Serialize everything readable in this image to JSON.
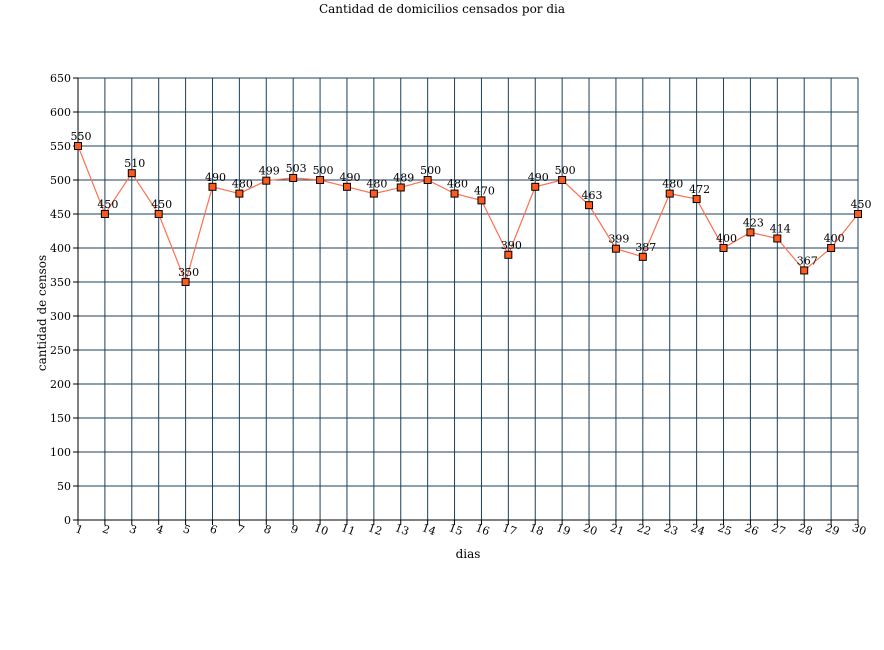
{
  "chart_data": {
    "type": "line",
    "title": "Cantidad de domicilios censados por dia",
    "xlabel": "dias",
    "ylabel": "cantidad de censos",
    "categories": [
      "1",
      "2",
      "3",
      "4",
      "5",
      "6",
      "7",
      "8",
      "9",
      "10",
      "11",
      "12",
      "13",
      "14",
      "15",
      "16",
      "17",
      "18",
      "19",
      "20",
      "21",
      "22",
      "23",
      "24",
      "25",
      "26",
      "27",
      "28",
      "29",
      "30"
    ],
    "series": [
      {
        "values": [
          550,
          450,
          510,
          450,
          350,
          490,
          480,
          499,
          503,
          500,
          490,
          480,
          489,
          500,
          480,
          470,
          390,
          490,
          500,
          463,
          399,
          387,
          480,
          472,
          400,
          423,
          414,
          367,
          400,
          450
        ]
      }
    ],
    "ylim": [
      0,
      650
    ],
    "ytick_step": 50,
    "grid": true,
    "legend": "none",
    "colors": {
      "line": "#ff7050",
      "marker_fill": "#ff5a1e",
      "marker_stroke": "#000000",
      "grid": "#1c3f5c"
    }
  }
}
